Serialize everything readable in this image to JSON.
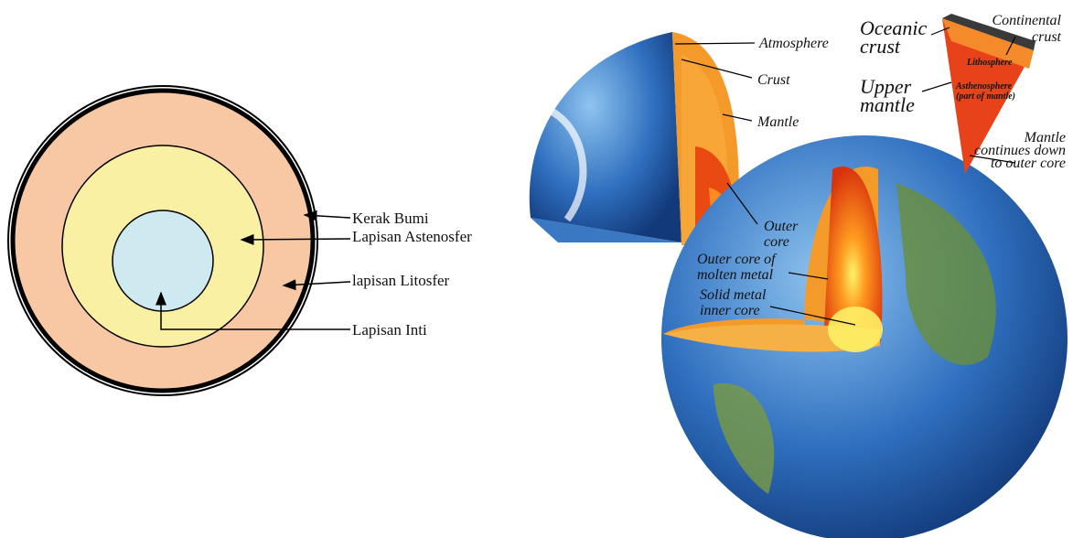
{
  "left_diagram": {
    "labels": [
      "Kerak Bumi",
      "Lapisan Astenosfer",
      "lapisan Litosfer",
      "Lapisan Inti"
    ]
  },
  "right_diagram": {
    "globe_labels": [
      [
        "Atmosphere"
      ],
      [
        "Crust"
      ],
      [
        "Mantle"
      ],
      [
        "Outer",
        "core"
      ],
      [
        "Outer core of",
        "molten metal"
      ],
      [
        "Solid metal",
        "inner core"
      ]
    ],
    "wedge_labels": [
      [
        "Oceanic",
        "crust"
      ],
      [
        "Continental",
        "crust"
      ],
      [
        "Upper",
        "mantle"
      ],
      [
        "Lithosphere"
      ],
      [
        "Asthenosphere",
        "(part of mantle)"
      ],
      [
        "Mantle",
        "continues down",
        "to outer core"
      ]
    ]
  }
}
